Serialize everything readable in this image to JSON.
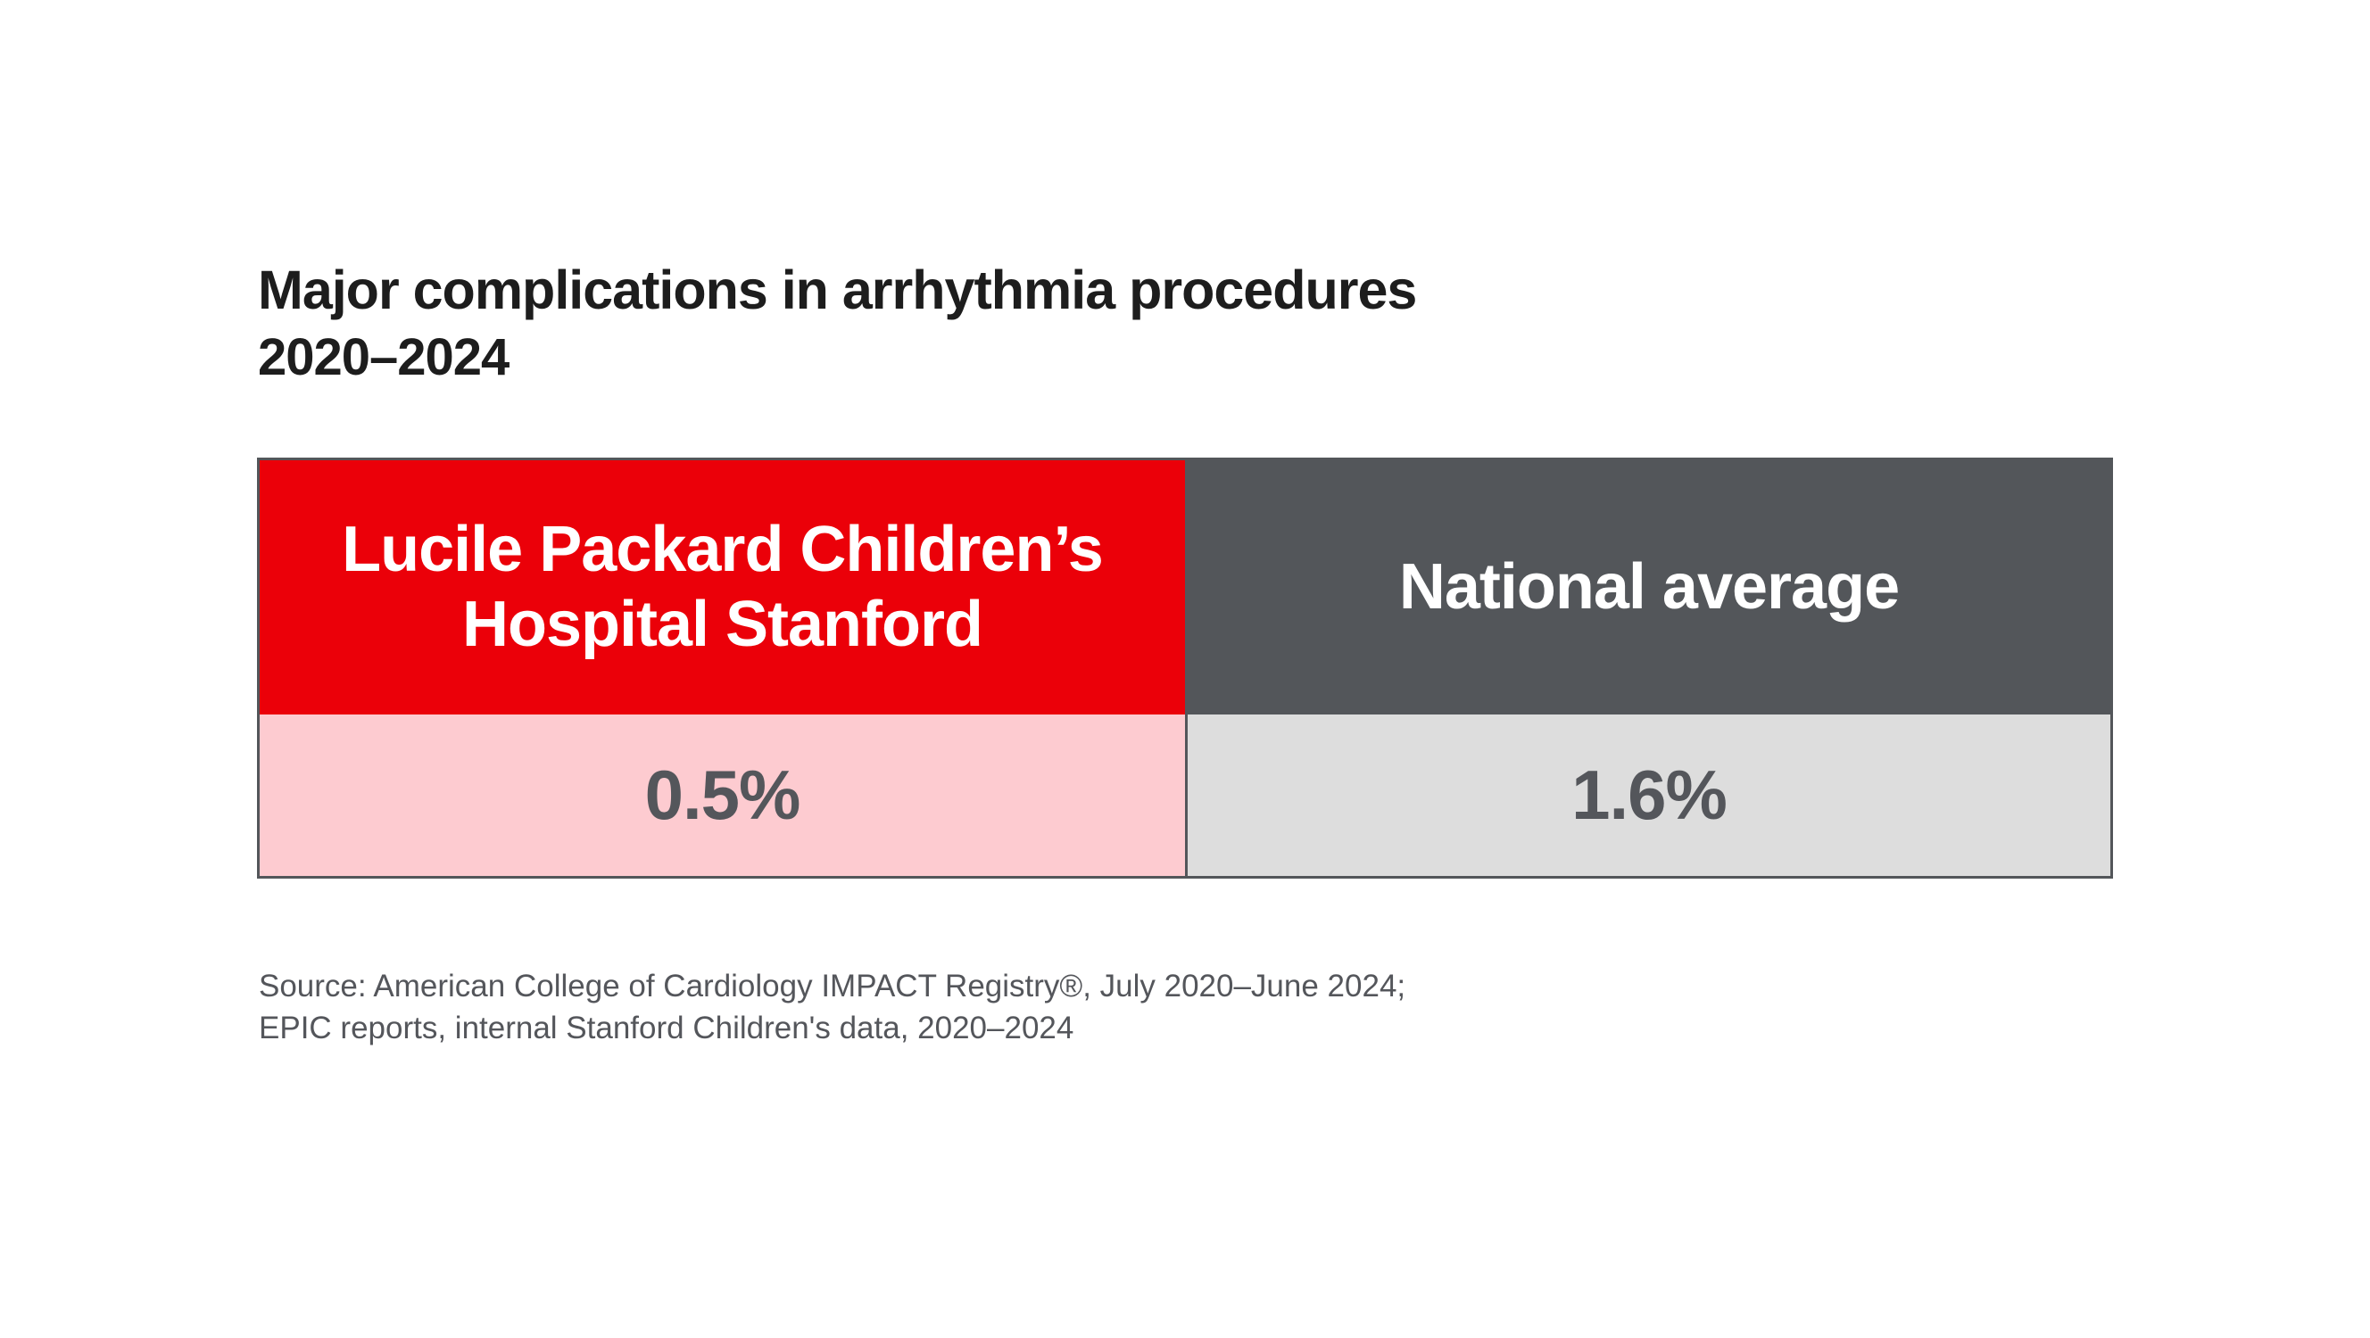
{
  "title": "Major complications in arrhythmia procedures",
  "subtitle": "2020–2024",
  "table": {
    "columns": [
      {
        "header": "Lucile Packard Children’s Hospital Stanford",
        "value": "0.5%"
      },
      {
        "header": "National average",
        "value": "1.6%"
      }
    ]
  },
  "source": {
    "line1": "Source: American College of Cardiology IMPACT Registry®, July 2020–June 2024;",
    "line2": "EPIC reports, internal Stanford Children's data, 2020–2024"
  },
  "colors": {
    "brand_red": "#EB0009",
    "brand_red_tint": "#FDCBD0",
    "cool_gray": "#53565A",
    "cool_gray_tint": "#DDDDDD",
    "header_text": "#FFFFFF",
    "value_text": "#54565B",
    "title_text": "#1D1D1D",
    "source_text": "#54565B",
    "border": "#53565A"
  },
  "chart_data": {
    "type": "table",
    "title": "Major complications in arrhythmia procedures",
    "subtitle": "2020–2024",
    "categories": [
      "Lucile Packard Children’s Hospital Stanford",
      "National average"
    ],
    "values": [
      0.5,
      1.6
    ],
    "value_labels": [
      "0.5%",
      "1.6%"
    ],
    "unit": "percent",
    "legend_position": "none",
    "grid": false,
    "annotations": [
      "Source: American College of Cardiology IMPACT Registry®, July 2020–June 2024;",
      "EPIC reports, internal Stanford Children's data, 2020–2024"
    ]
  }
}
